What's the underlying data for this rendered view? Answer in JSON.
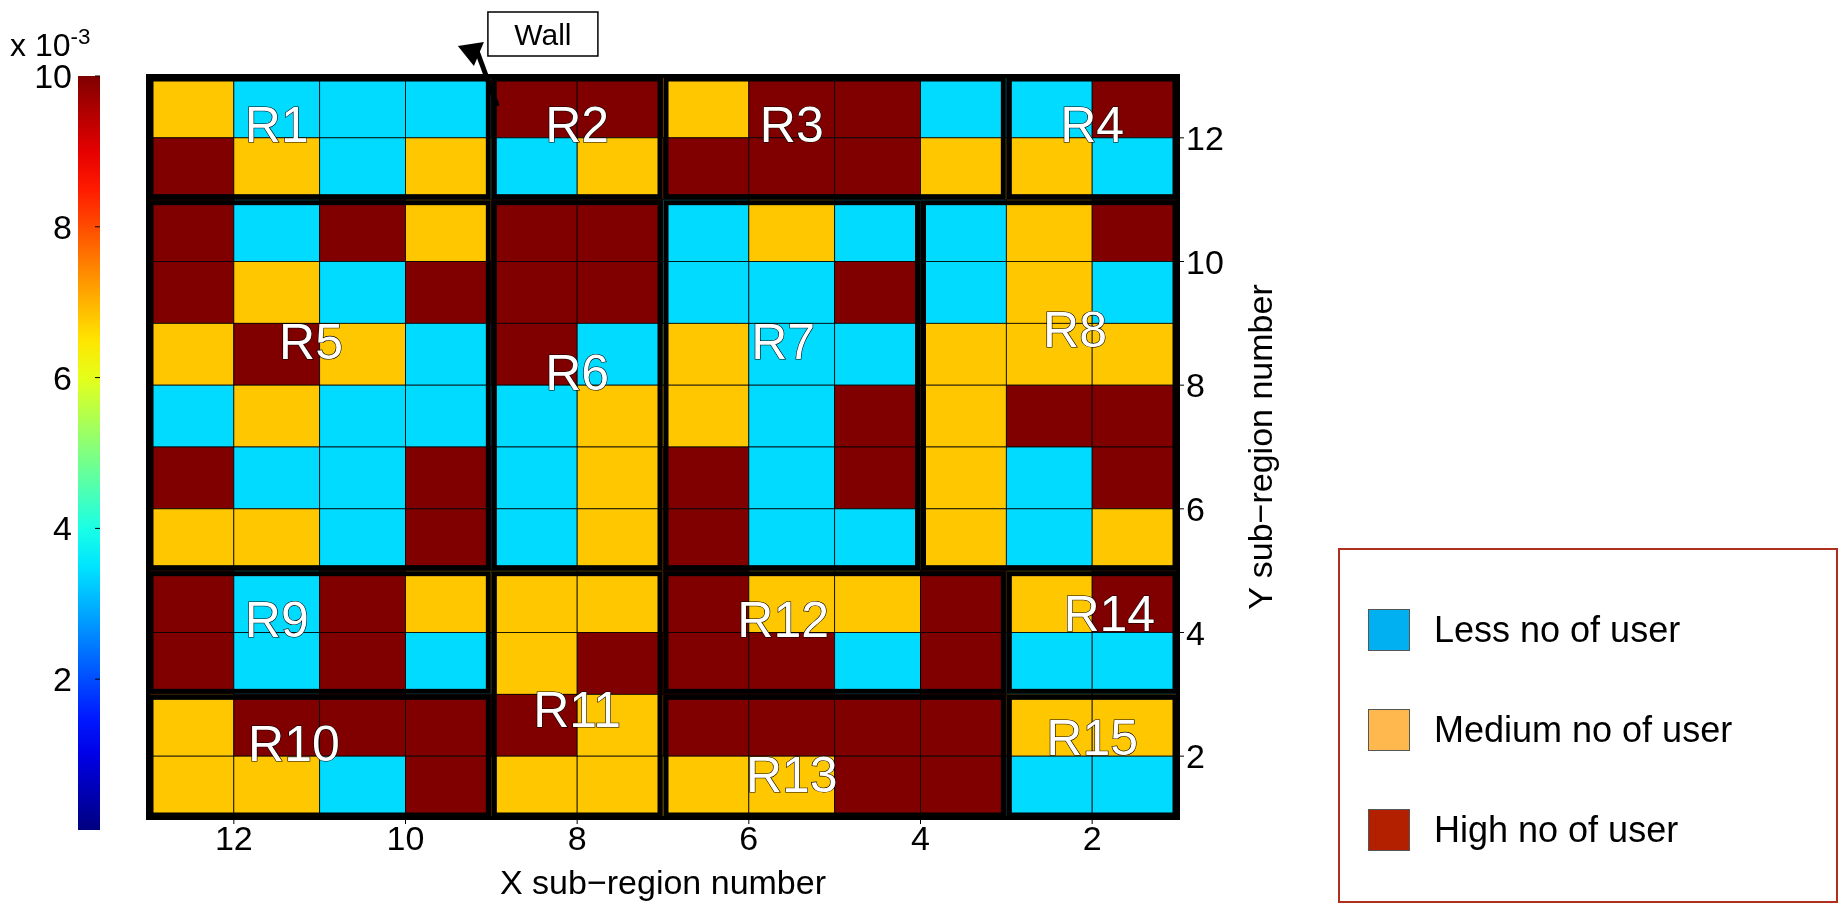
{
  "chart_data": {
    "type": "heatmap",
    "x": [
      12.5,
      11.5,
      10.5,
      9.5,
      8.5,
      7.5,
      6.5,
      5.5,
      4.5,
      3.5,
      2.5,
      1.5
    ],
    "y": [
      12.5,
      11.5,
      10.5,
      9.5,
      8.5,
      7.5,
      6.5,
      5.5,
      4.5,
      3.5,
      2.5,
      1.5
    ],
    "cells": [
      [
        6.8,
        3.4,
        3.4,
        3.4,
        10,
        10,
        6.8,
        10,
        10,
        3.4,
        3.4,
        10
      ],
      [
        10,
        6.8,
        3.4,
        6.8,
        3.4,
        6.8,
        10,
        10,
        10,
        6.8,
        6.8,
        3.4
      ],
      [
        10,
        3.4,
        10,
        6.8,
        10,
        10,
        3.4,
        6.8,
        3.4,
        3.4,
        6.8,
        10
      ],
      [
        10,
        6.8,
        3.4,
        10,
        10,
        10,
        3.4,
        3.4,
        10,
        3.4,
        6.8,
        3.4
      ],
      [
        6.8,
        10,
        6.8,
        3.4,
        10,
        3.4,
        6.8,
        3.4,
        3.4,
        6.8,
        6.8,
        6.8
      ],
      [
        3.4,
        6.8,
        3.4,
        3.4,
        3.4,
        6.8,
        6.8,
        3.4,
        10,
        6.8,
        10,
        10
      ],
      [
        10,
        3.4,
        3.4,
        10,
        3.4,
        6.8,
        10,
        3.4,
        10,
        6.8,
        3.4,
        10
      ],
      [
        6.8,
        6.8,
        3.4,
        10,
        3.4,
        6.8,
        10,
        3.4,
        3.4,
        6.8,
        3.4,
        6.8
      ],
      [
        10,
        3.4,
        10,
        6.8,
        6.8,
        6.8,
        10,
        6.8,
        6.8,
        10,
        6.8,
        10
      ],
      [
        10,
        3.4,
        10,
        3.4,
        6.8,
        10,
        10,
        10,
        3.4,
        10,
        3.4,
        3.4
      ],
      [
        6.8,
        10,
        10,
        10,
        10,
        6.8,
        10,
        10,
        10,
        10,
        6.8,
        6.8
      ],
      [
        6.8,
        6.8,
        3.4,
        10,
        6.8,
        6.8,
        6.8,
        6.8,
        10,
        10,
        3.4,
        3.4
      ]
    ],
    "xlim": [
      13,
      1
    ],
    "xticks": [
      12,
      10,
      8,
      6,
      4,
      2
    ],
    "ylim": [
      1,
      13
    ],
    "yticks": [
      2,
      4,
      6,
      8,
      10,
      12
    ],
    "xlabel": "X sub−region number",
    "ylabel": "Y sub−region number",
    "clabel": "x 10$^{-3}$",
    "clim": [
      0,
      10
    ],
    "cticks": [
      2,
      4,
      6,
      8,
      10
    ],
    "annotations": [
      "Wall",
      "R1",
      "R2",
      "R3",
      "R4",
      "R5",
      "R6",
      "R7",
      "R8",
      "R9",
      "R10",
      "R11",
      "R12",
      "R13",
      "R14",
      "R15",
      "Less no of user",
      "Medium no of user",
      "High no of user"
    ]
  }
}
